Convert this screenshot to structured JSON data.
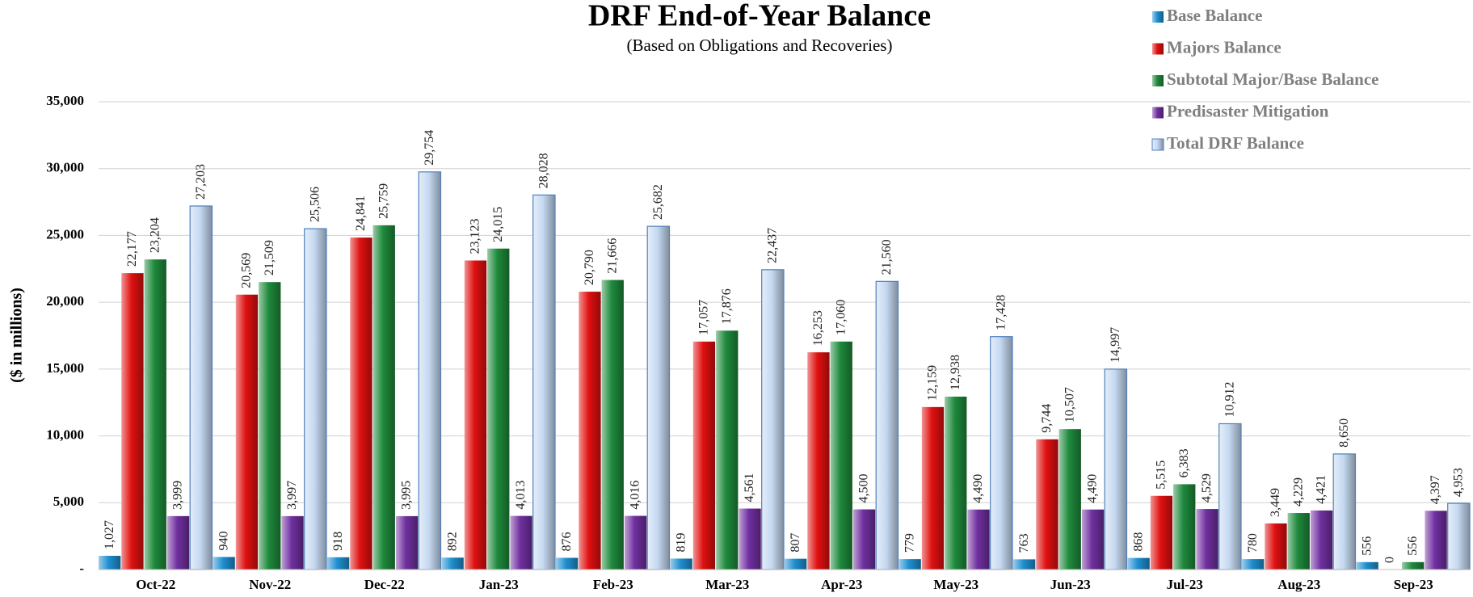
{
  "chart_data": {
    "type": "bar",
    "title": "DRF End-of-Year Balance",
    "subtitle": "(Based on Obligations and Recoveries)",
    "y_label": "($ in millions)",
    "categories": [
      "Oct-22",
      "Nov-22",
      "Dec-22",
      "Jan-23",
      "Feb-23",
      "Mar-23",
      "Apr-23",
      "May-23",
      "Jun-23",
      "Jul-23",
      "Aug-23",
      "Sep-23"
    ],
    "series": [
      {
        "name": "Base Balance",
        "color": "#1f8fd0",
        "values": [
          1027,
          940,
          918,
          892,
          876,
          819,
          807,
          779,
          763,
          868,
          780,
          556
        ],
        "value_labels": [
          "1,027",
          "940",
          "918",
          "892",
          "876",
          "819",
          "807",
          "779",
          "763",
          "868",
          "780",
          "556"
        ]
      },
      {
        "name": "Majors Balance",
        "color": "#e01010",
        "values": [
          22177,
          20569,
          24841,
          23123,
          20790,
          17057,
          16253,
          12159,
          9744,
          5515,
          3449,
          0
        ],
        "value_labels": [
          "22,177",
          "20,569",
          "24,841",
          "23,123",
          "20,790",
          "17,057",
          "16,253",
          "12,159",
          "9,744",
          "5,515",
          "3,449",
          "0"
        ]
      },
      {
        "name": "Subtotal Major/Base Balance",
        "color": "#1e8a3c",
        "values": [
          23204,
          21509,
          25759,
          24015,
          21666,
          17876,
          17060,
          12938,
          10507,
          6383,
          4229,
          556
        ],
        "value_labels": [
          "23,204",
          "21,509",
          "25,759",
          "24,015",
          "21,666",
          "17,876",
          "17,060",
          "12,938",
          "10,507",
          "6,383",
          "4,229",
          "556"
        ]
      },
      {
        "name": "Predisaster Mitigation",
        "color": "#7030a0",
        "values": [
          3999,
          3997,
          3995,
          4013,
          4016,
          4561,
          4500,
          4490,
          4490,
          4529,
          4421,
          4397
        ],
        "value_labels": [
          "3,999",
          "3,997",
          "3,995",
          "4,013",
          "4,016",
          "4,561",
          "4,500",
          "4,490",
          "4,490",
          "4,529",
          "4,421",
          "4,397"
        ]
      },
      {
        "name": "Total DRF Balance",
        "color": "#c5d9f1",
        "values": [
          27203,
          25506,
          29754,
          28028,
          25682,
          22437,
          21560,
          17428,
          14997,
          10912,
          8650,
          4953
        ],
        "value_labels": [
          "27,203",
          "25,506",
          "29,754",
          "28,028",
          "25,682",
          "22,437",
          "21,560",
          "17,428",
          "14,997",
          "10,912",
          "8,650",
          "4,953"
        ]
      }
    ],
    "ylim": [
      0,
      35000
    ],
    "yticks": [
      {
        "value": 0,
        "label": "-"
      },
      {
        "value": 5000,
        "label": "5,000"
      },
      {
        "value": 10000,
        "label": "10,000"
      },
      {
        "value": 15000,
        "label": "15,000"
      },
      {
        "value": 20000,
        "label": "20,000"
      },
      {
        "value": 25000,
        "label": "25,000"
      },
      {
        "value": 30000,
        "label": "30,000"
      },
      {
        "value": 35000,
        "label": "35,000"
      }
    ],
    "grid": true,
    "legend": "top-right"
  }
}
